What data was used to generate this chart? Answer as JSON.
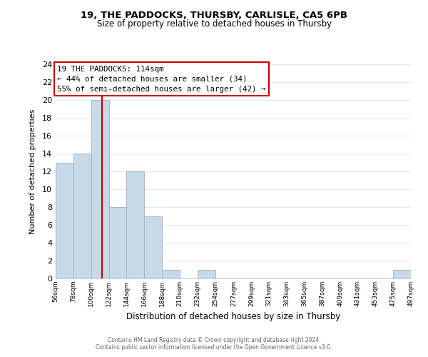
{
  "title": "19, THE PADDOCKS, THURSBY, CARLISLE, CA5 6PB",
  "subtitle": "Size of property relative to detached houses in Thursby",
  "xlabel": "Distribution of detached houses by size in Thursby",
  "ylabel": "Number of detached properties",
  "bar_edges": [
    56,
    78,
    100,
    122,
    144,
    166,
    188,
    210,
    232,
    254,
    277,
    299,
    321,
    343,
    365,
    387,
    409,
    431,
    453,
    475,
    497
  ],
  "bar_heights": [
    13,
    14,
    20,
    8,
    12,
    7,
    1,
    0,
    1,
    0,
    0,
    0,
    0,
    0,
    0,
    0,
    0,
    0,
    0,
    1
  ],
  "bar_color": "#c8d9e8",
  "bar_edge_color": "#a0b8cc",
  "property_size": 114,
  "red_line_color": "#cc0000",
  "annotation_line1": "19 THE PADDOCKS: 114sqm",
  "annotation_line2": "← 44% of detached houses are smaller (34)",
  "annotation_line3": "55% of semi-detached houses are larger (42) →",
  "annotation_box_color": "#ffffff",
  "annotation_box_edge_color": "#cc0000",
  "ylim": [
    0,
    24
  ],
  "yticks": [
    0,
    2,
    4,
    6,
    8,
    10,
    12,
    14,
    16,
    18,
    20,
    22,
    24
  ],
  "footer1": "Contains HM Land Registry data © Crown copyright and database right 2024.",
  "footer2": "Contains public sector information licensed under the Open Government Licence v3.0.",
  "background_color": "#ffffff",
  "grid_color": "#dce8f0",
  "tick_labels": [
    "56sqm",
    "78sqm",
    "100sqm",
    "122sqm",
    "144sqm",
    "166sqm",
    "188sqm",
    "210sqm",
    "232sqm",
    "254sqm",
    "277sqm",
    "299sqm",
    "321sqm",
    "343sqm",
    "365sqm",
    "387sqm",
    "409sqm",
    "431sqm",
    "453sqm",
    "475sqm",
    "497sqm"
  ]
}
